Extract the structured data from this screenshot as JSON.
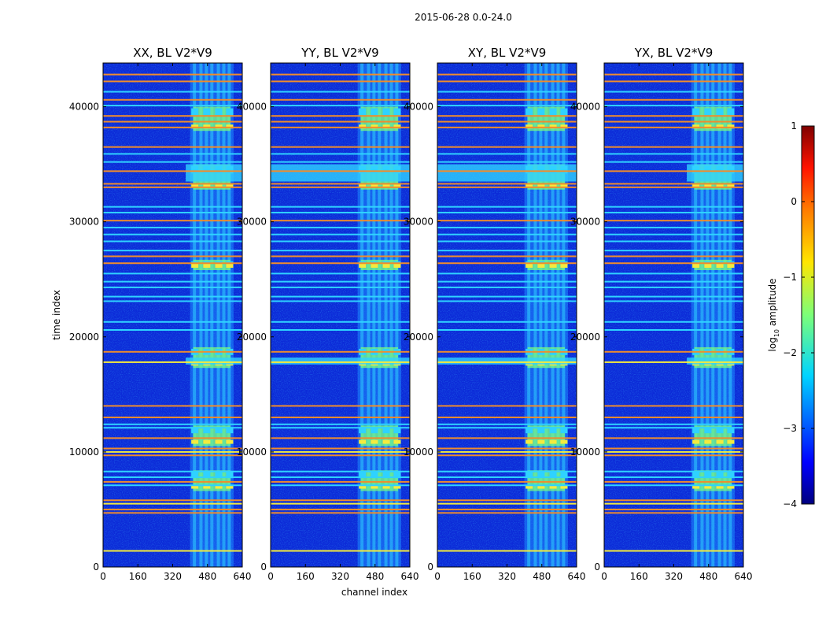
{
  "chart_data": {
    "type": "heatmap",
    "suptitle": "2015-06-28 0.0-24.0",
    "xlabel": "channel index",
    "ylabel": "time index",
    "xlim": [
      0,
      640
    ],
    "ylim": [
      0,
      43800
    ],
    "xticks": [
      "0",
      "160",
      "320",
      "480",
      "640"
    ],
    "yticks": [
      "0",
      "10000",
      "20000",
      "30000",
      "40000"
    ],
    "panels": [
      {
        "title": "XX, BL V2*V9",
        "polarization": "XX"
      },
      {
        "title": "YY, BL V2*V9",
        "polarization": "YY"
      },
      {
        "title": "XY, BL V2*V9",
        "polarization": "XY"
      },
      {
        "title": "YX, BL V2*V9",
        "polarization": "YX"
      }
    ],
    "colorbar": {
      "label_prefix": "log",
      "label_sub": "10",
      "label_suffix": " amplitude",
      "range": [
        -4,
        1
      ],
      "ticks": [
        "1",
        "0",
        "−1",
        "−2",
        "−3",
        "−4"
      ],
      "colormap": "jet"
    },
    "rfi_bands": {
      "channels_start": 400,
      "channels_end": 600,
      "channel_columns": [
        420,
        450,
        475,
        500,
        530,
        555,
        580
      ]
    },
    "flagged_times": [
      {
        "t": 1400,
        "level": "yellow"
      },
      {
        "t": 4700,
        "level": "orange"
      },
      {
        "t": 5000,
        "level": "orange"
      },
      {
        "t": 5500,
        "level": "yellow"
      },
      {
        "t": 5800,
        "level": "orange"
      },
      {
        "t": 7100,
        "level": "cyan"
      },
      {
        "t": 7400,
        "level": "orange"
      },
      {
        "t": 7800,
        "level": "cyan"
      },
      {
        "t": 8300,
        "level": "cyan"
      },
      {
        "t": 9700,
        "level": "orange"
      },
      {
        "t": 10000,
        "level": "yellow"
      },
      {
        "t": 10300,
        "level": "orange"
      },
      {
        "t": 11200,
        "level": "orange"
      },
      {
        "t": 12100,
        "level": "cyan"
      },
      {
        "t": 12400,
        "level": "cyan"
      },
      {
        "t": 13000,
        "level": "orange"
      },
      {
        "t": 14000,
        "level": "orange"
      },
      {
        "t": 17800,
        "level": "yellow"
      },
      {
        "t": 18700,
        "level": "orange"
      },
      {
        "t": 20600,
        "level": "cyan"
      },
      {
        "t": 21300,
        "level": "cyan"
      },
      {
        "t": 23100,
        "level": "cyan"
      },
      {
        "t": 23500,
        "level": "cyan"
      },
      {
        "t": 24300,
        "level": "cyan"
      },
      {
        "t": 24800,
        "level": "cyan"
      },
      {
        "t": 25500,
        "level": "cyan"
      },
      {
        "t": 26400,
        "level": "orange"
      },
      {
        "t": 27000,
        "level": "orange"
      },
      {
        "t": 27500,
        "level": "cyan"
      },
      {
        "t": 28300,
        "level": "cyan"
      },
      {
        "t": 28900,
        "level": "cyan"
      },
      {
        "t": 29500,
        "level": "cyan"
      },
      {
        "t": 30100,
        "level": "orange"
      },
      {
        "t": 30800,
        "level": "cyan"
      },
      {
        "t": 31300,
        "level": "cyan"
      },
      {
        "t": 33000,
        "level": "orange"
      },
      {
        "t": 33300,
        "level": "orange"
      },
      {
        "t": 34400,
        "level": "orange"
      },
      {
        "t": 35200,
        "level": "cyan"
      },
      {
        "t": 35900,
        "level": "cyan"
      },
      {
        "t": 36500,
        "level": "orange"
      },
      {
        "t": 38200,
        "level": "orange"
      },
      {
        "t": 38700,
        "level": "orange"
      },
      {
        "t": 39200,
        "level": "orange"
      },
      {
        "t": 40100,
        "level": "cyan"
      },
      {
        "t": 40600,
        "level": "orange"
      },
      {
        "t": 41300,
        "level": "cyan"
      },
      {
        "t": 42200,
        "level": "orange"
      },
      {
        "t": 42800,
        "level": "orange"
      }
    ],
    "rfi_blocks": [
      {
        "t0": 6600,
        "t1": 8400
      },
      {
        "t0": 10500,
        "t1": 12300
      },
      {
        "t0": 17300,
        "t1": 19100
      },
      {
        "t0": 25800,
        "t1": 26700
      },
      {
        "t0": 32800,
        "t1": 35000
      },
      {
        "t0": 37900,
        "t1": 40000
      }
    ],
    "broadband_events": [
      {
        "t0": 17600,
        "t1": 18200
      },
      {
        "t0": 33500,
        "t1": 35000
      }
    ],
    "level_colors": {
      "background": "#0c2bd8",
      "cyan": "#2fd2ff",
      "yellow": "#f4ea3e",
      "orange": "#f08c2c",
      "red": "#e8301c",
      "green": "#7bfc7d"
    }
  }
}
